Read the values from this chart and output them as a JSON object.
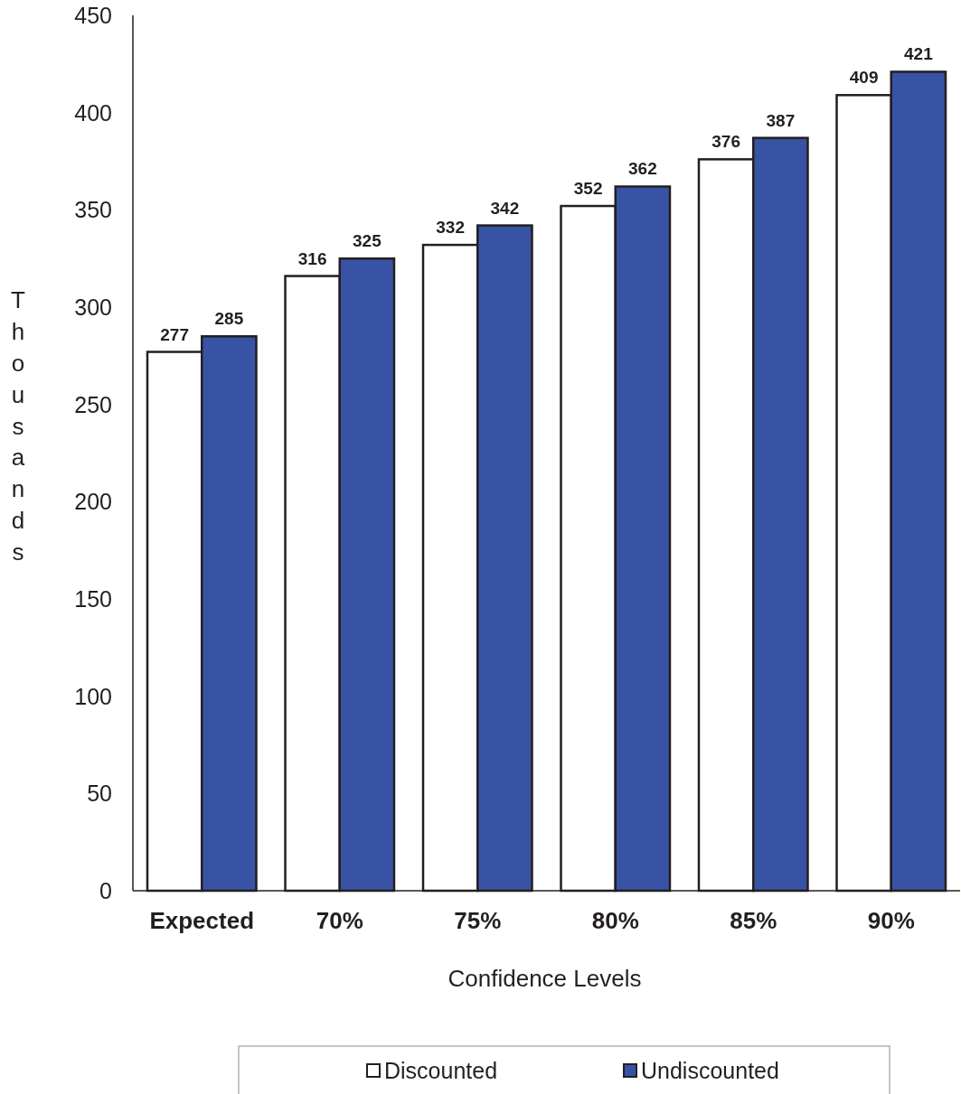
{
  "chart_data": {
    "type": "bar",
    "xlabel": "Confidence Levels",
    "ylabel": "Thousands",
    "categories": [
      "Expected",
      "70%",
      "75%",
      "80%",
      "85%",
      "90%"
    ],
    "series": [
      {
        "name": "Discounted",
        "color": "#ffffff",
        "values": [
          277,
          316,
          332,
          352,
          376,
          409
        ]
      },
      {
        "name": "Undiscounted",
        "color": "#3953a4",
        "values": [
          285,
          325,
          342,
          362,
          387,
          421
        ]
      }
    ],
    "ylim": [
      0,
      450
    ],
    "yticks": [
      0,
      50,
      100,
      150,
      200,
      250,
      300,
      350,
      400,
      450
    ],
    "grid": false,
    "legend": "bottom",
    "data_labels": true
  }
}
